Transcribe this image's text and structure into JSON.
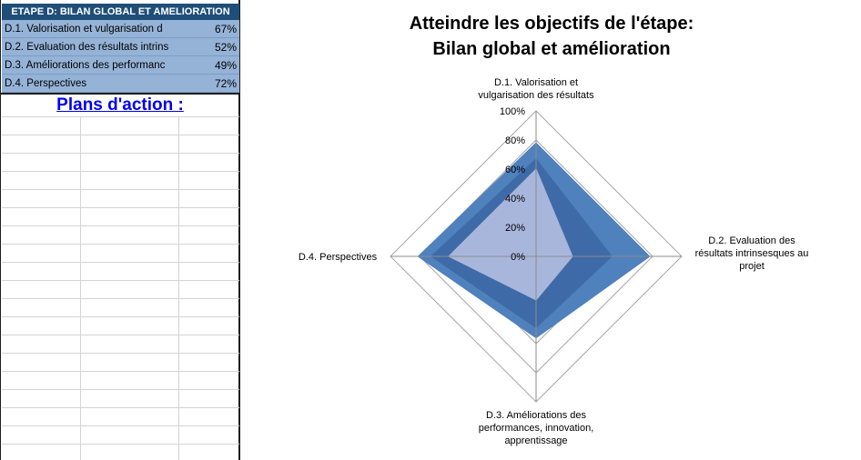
{
  "sheet": {
    "header": "ETAPE D: BILAN GLOBAL ET AMELIORATION",
    "rows": [
      {
        "label": "D.1. Valorisation et vulgarisation d",
        "value": "67%"
      },
      {
        "label": "D.2. Evaluation des résultats intrins",
        "value": "52%"
      },
      {
        "label": "D.3. Améliorations des performanc",
        "value": "49%"
      },
      {
        "label": "D.4. Perspectives",
        "value": "72%"
      }
    ],
    "action_title": "Plans d'action :"
  },
  "chart_data": {
    "type": "radar",
    "title_lines": [
      "Atteindre les objectifs de l'étape:",
      "Bilan global et amélioration"
    ],
    "axes": [
      {
        "lines": [
          "D.1. Valorisation  et",
          "vulgarisation des résultats"
        ]
      },
      {
        "lines": [
          "D.2. Evaluation  des",
          "résultats intrinsesques au",
          "projet"
        ]
      },
      {
        "lines": [
          "D.3. Améliorations des",
          "performances, innovation,",
          "apprentissage"
        ]
      },
      {
        "lines": [
          "D.4. Perspectives"
        ]
      }
    ],
    "tick_labels": [
      "0%",
      "20%",
      "40%",
      "60%",
      "80%",
      "100%"
    ],
    "range": [
      0,
      100
    ],
    "series": [
      {
        "values": [
          78,
          78,
          56,
          81
        ],
        "color": "#4f81bd"
      },
      {
        "values": [
          67,
          52,
          49,
          72
        ],
        "color": "#3f6aa8"
      },
      {
        "values": [
          60,
          25,
          30,
          60
        ],
        "color": "#a9b6dc"
      }
    ]
  }
}
